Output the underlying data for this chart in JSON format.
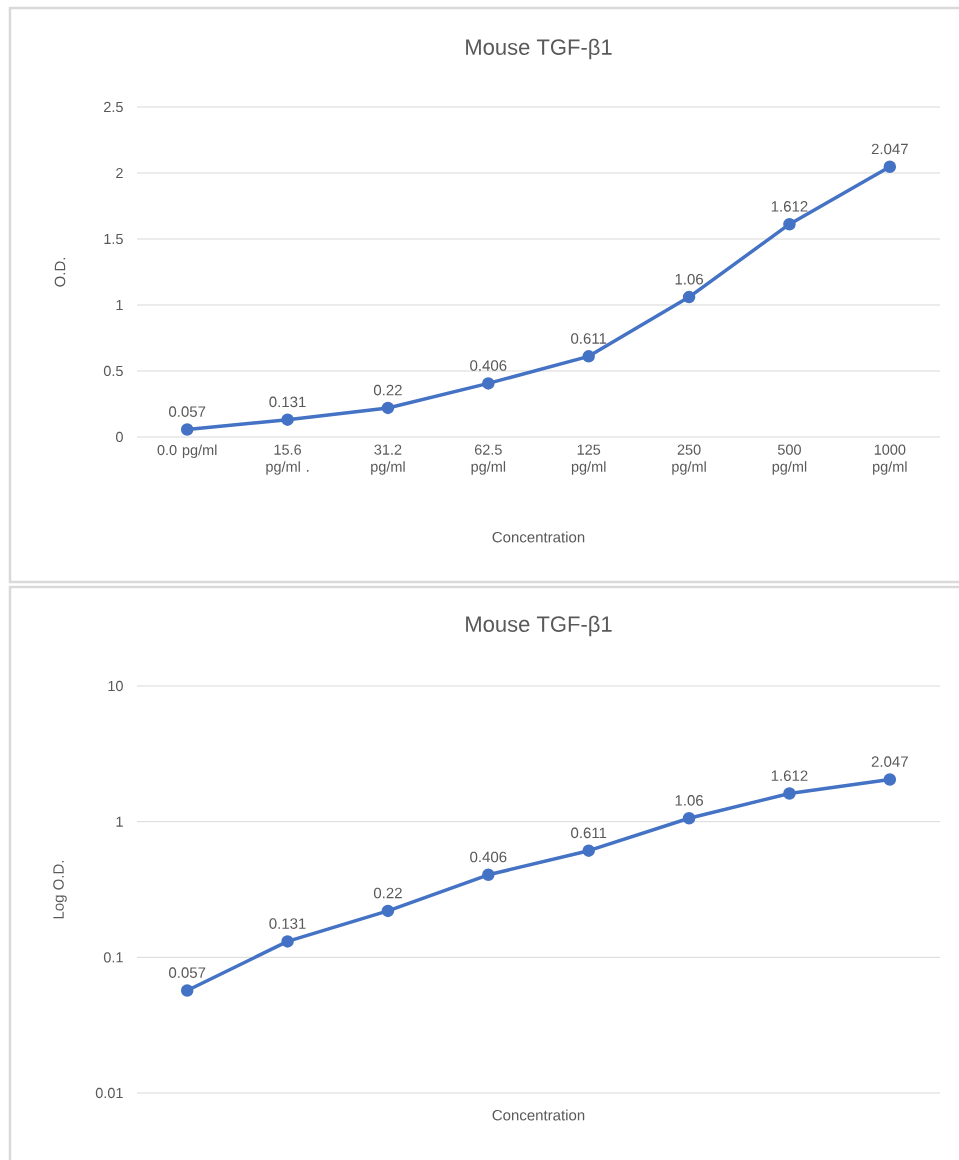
{
  "chart_data": [
    {
      "type": "line",
      "title": "Mouse TGF-β1",
      "xlabel": "Concentration",
      "ylabel": "O.D.",
      "categories": [
        "0.0 pg/ml",
        "15.6 pg/ml .",
        "31.2 pg/ml",
        "62.5 pg/ml",
        "125 pg/ml",
        "250 pg/ml",
        "500 pg/ml",
        "1000 pg/ml"
      ],
      "values": [
        0.057,
        0.131,
        0.22,
        0.406,
        0.611,
        1.06,
        1.612,
        2.047
      ],
      "color": "#4472c4",
      "ylim": [
        0,
        2.5
      ],
      "yticks": [
        0,
        0.5,
        1,
        1.5,
        2,
        2.5
      ],
      "grid": "y",
      "marker": "circle",
      "data_labels": true
    },
    {
      "type": "line",
      "title": "Mouse TGF-β1",
      "xlabel": "Concentration",
      "ylabel": "Log O.D.",
      "categories": [
        null,
        null,
        null,
        null,
        null,
        null,
        null,
        null
      ],
      "values": [
        0.057,
        0.131,
        0.22,
        0.406,
        0.611,
        1.06,
        1.612,
        2.047
      ],
      "color": "#4472c4",
      "ylim": [
        0.01,
        10
      ],
      "yticks": [
        0.01,
        0.1,
        1,
        10
      ],
      "log": "y",
      "grid": "y",
      "marker": "circle",
      "data_labels": true,
      "tick_labels": "y"
    }
  ]
}
